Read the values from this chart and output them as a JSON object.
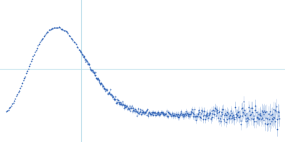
{
  "background_color": "#ffffff",
  "point_color": "#2b5fb4",
  "error_color": "#aec6e8",
  "grid_color": "#add8e6",
  "grid_alpha": 0.8,
  "grid_linewidth": 0.8,
  "figsize": [
    4.0,
    2.0
  ],
  "dpi": 100,
  "xlim": [
    0.0,
    1.0
  ],
  "ylim": [
    -0.25,
    1.05
  ],
  "vline_x": 0.285,
  "hline_y": 0.42,
  "seed": 42
}
